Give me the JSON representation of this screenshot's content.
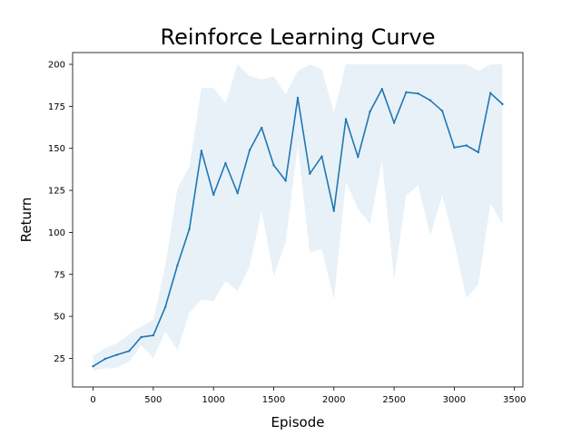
{
  "chart_data": {
    "type": "line",
    "title": "Reinforce Learning Curve",
    "xlabel": "Episode",
    "ylabel": "Return",
    "xlim": [
      -170,
      3570
    ],
    "ylim": [
      8,
      207
    ],
    "xticks": [
      0,
      500,
      1000,
      1500,
      2000,
      2500,
      3000,
      3500
    ],
    "yticks": [
      25,
      50,
      75,
      100,
      125,
      150,
      175,
      200
    ],
    "grid": false,
    "legend": "none",
    "colors": {
      "line": "#1f77b4",
      "band": "#1f77b4",
      "band_opacity": 0.1
    },
    "series": [
      {
        "x": [
          0,
          100,
          200,
          300,
          400,
          500,
          600,
          700,
          800,
          900,
          1000,
          1100,
          1200,
          1300,
          1400,
          1500,
          1600,
          1700,
          1800,
          1900,
          2000,
          2100,
          2200,
          2300,
          2400,
          2500,
          2600,
          2700,
          2800,
          2900,
          3000,
          3100,
          3200,
          3300,
          3400
        ],
        "y": [
          20.3,
          24.7,
          27.2,
          29.4,
          37.7,
          38.7,
          55.5,
          80.3,
          102.0,
          148.6,
          122.4,
          141.2,
          123.3,
          148.9,
          162.3,
          140.0,
          130.7,
          180.1,
          134.9,
          145.2,
          112.8,
          167.4,
          144.8,
          171.9,
          185.3,
          165.2,
          183.4,
          182.6,
          178.6,
          172.3,
          150.5,
          151.7,
          147.7,
          182.9,
          176.3
        ],
        "upper": [
          26.5,
          31.1,
          34.0,
          39.5,
          44.0,
          48.0,
          80.0,
          126.0,
          139.0,
          186.0,
          186.0,
          177.0,
          200.0,
          193.0,
          191.0,
          193.0,
          182.0,
          196.0,
          200.0,
          197.0,
          171.0,
          200.0,
          200.0,
          200.0,
          200.0,
          200.0,
          200.0,
          200.0,
          200.0,
          200.0,
          200.0,
          200.0,
          196.0,
          200.0,
          200.0
        ],
        "lower": [
          18.0,
          19.0,
          19.5,
          23.0,
          33.0,
          25.0,
          41.0,
          30.0,
          52.0,
          60.0,
          59.0,
          71.0,
          65.0,
          80.0,
          113.0,
          74.0,
          94.0,
          152.0,
          88.0,
          90.0,
          60.0,
          130.0,
          114.0,
          105.0,
          143.0,
          72.0,
          122.0,
          128.0,
          98.0,
          122.0,
          94.0,
          61.0,
          69.0,
          117.0,
          105.0
        ]
      }
    ]
  }
}
